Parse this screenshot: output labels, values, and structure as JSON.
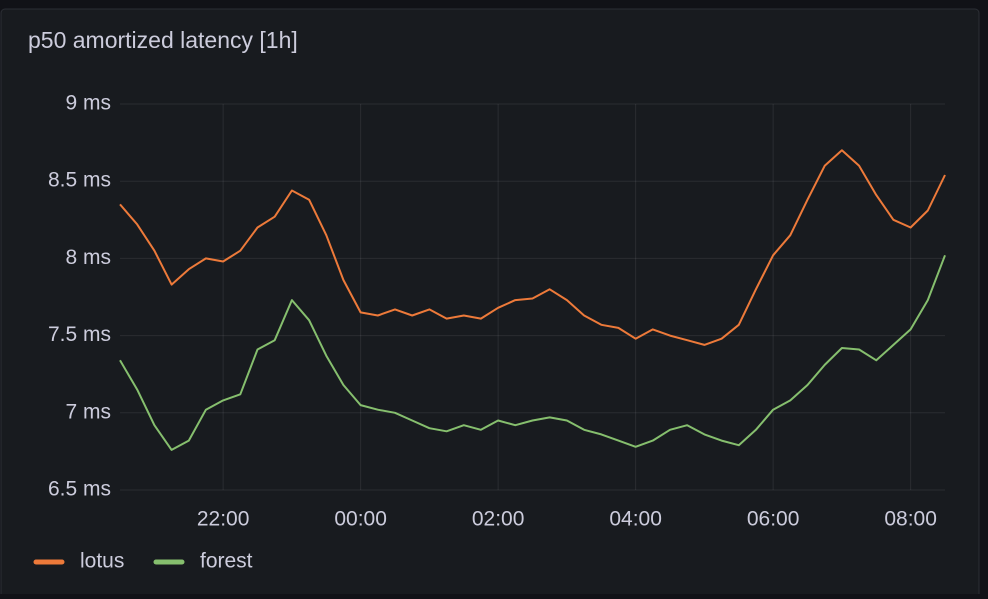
{
  "chart_data": {
    "type": "line",
    "title": "p50 amortized latency [1h]",
    "categories": [
      null,
      null,
      null,
      null,
      null,
      null,
      "22:00",
      null,
      null,
      null,
      null,
      null,
      null,
      null,
      "00:00",
      null,
      null,
      null,
      null,
      null,
      null,
      null,
      "02:00",
      null,
      null,
      null,
      null,
      null,
      null,
      null,
      "04:00",
      null,
      null,
      null,
      null,
      null,
      null,
      null,
      "06:00",
      null,
      null,
      null,
      null,
      null,
      null,
      null,
      "08:00",
      null,
      null
    ],
    "series": [
      {
        "name": "lotus",
        "color": "#ed7a3a",
        "values": [
          8.35,
          8.22,
          8.05,
          7.83,
          7.93,
          8.0,
          7.98,
          8.05,
          8.2,
          8.27,
          8.44,
          8.38,
          8.15,
          7.86,
          7.65,
          7.63,
          7.67,
          7.63,
          7.67,
          7.61,
          7.63,
          7.61,
          7.68,
          7.73,
          7.74,
          7.8,
          7.73,
          7.63,
          7.57,
          7.55,
          7.48,
          7.54,
          7.5,
          7.47,
          7.44,
          7.48,
          7.57,
          7.8,
          8.02,
          8.15,
          8.38,
          8.6,
          8.7,
          8.6,
          8.41,
          8.25,
          8.2,
          8.31,
          8.54
        ]
      },
      {
        "name": "forest",
        "color": "#86bf6e",
        "values": [
          7.34,
          7.15,
          6.92,
          6.76,
          6.82,
          7.02,
          7.08,
          7.12,
          7.41,
          7.47,
          7.73,
          7.6,
          7.37,
          7.18,
          7.05,
          7.02,
          7.0,
          6.95,
          6.9,
          6.88,
          6.92,
          6.89,
          6.95,
          6.92,
          6.95,
          6.97,
          6.95,
          6.89,
          6.86,
          6.82,
          6.78,
          6.82,
          6.89,
          6.92,
          6.86,
          6.82,
          6.79,
          6.89,
          7.02,
          7.08,
          7.18,
          7.31,
          7.42,
          7.41,
          7.34,
          7.44,
          7.54,
          7.73,
          8.02
        ]
      }
    ],
    "ylim": [
      6.5,
      9
    ],
    "yticks": [
      {
        "value": 6.5,
        "label": "6.5 ms"
      },
      {
        "value": 7,
        "label": "7 ms"
      },
      {
        "value": 7.5,
        "label": "7.5 ms"
      },
      {
        "value": 8,
        "label": "8 ms"
      },
      {
        "value": 8.5,
        "label": "8.5 ms"
      },
      {
        "value": 9,
        "label": "9 ms"
      }
    ],
    "grid": true,
    "legend": "bottom-left"
  }
}
